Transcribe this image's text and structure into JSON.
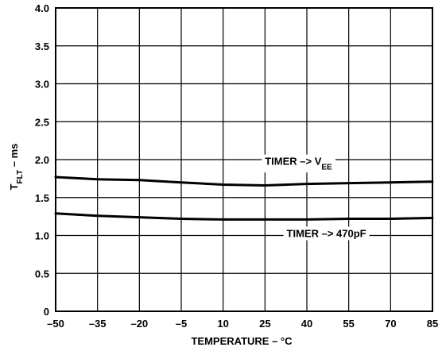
{
  "chart_data": {
    "type": "line",
    "title": "",
    "xlabel": "TEMPERATURE – °C",
    "ylabel": {
      "main": "T",
      "sub": "FLT",
      "rest": " – ms"
    },
    "xlim": [
      -50,
      85
    ],
    "ylim": [
      0,
      4
    ],
    "x_ticks": [
      -50,
      -35,
      -20,
      -5,
      10,
      25,
      40,
      55,
      70,
      85
    ],
    "x_tick_labels": [
      "–50",
      "–35",
      "–20",
      "–5",
      "10",
      "25",
      "40",
      "55",
      "70",
      "85"
    ],
    "y_ticks": [
      0,
      0.5,
      1.0,
      1.5,
      2.0,
      2.5,
      3.0,
      3.5,
      4.0
    ],
    "y_tick_labels": [
      "0",
      "0.5",
      "1.0",
      "1.5",
      "2.0",
      "2.5",
      "3.0",
      "3.5",
      "4.0"
    ],
    "grid": true,
    "series": [
      {
        "x": [
          -50,
          -35,
          -20,
          -5,
          10,
          25,
          40,
          55,
          70,
          85
        ],
        "y": [
          1.77,
          1.74,
          1.73,
          1.7,
          1.67,
          1.66,
          1.68,
          1.69,
          1.7,
          1.71
        ]
      },
      {
        "x": [
          -50,
          -35,
          -20,
          -5,
          10,
          25,
          40,
          55,
          70,
          85
        ],
        "y": [
          1.29,
          1.26,
          1.24,
          1.22,
          1.21,
          1.21,
          1.21,
          1.22,
          1.22,
          1.23
        ]
      }
    ],
    "annotations": [
      {
        "main": "TIMER –> V",
        "sub": "EE",
        "x": 37,
        "y": 1.93
      },
      {
        "main": "TIMER –> 470pF",
        "x": 47,
        "y": 0.98
      }
    ]
  }
}
